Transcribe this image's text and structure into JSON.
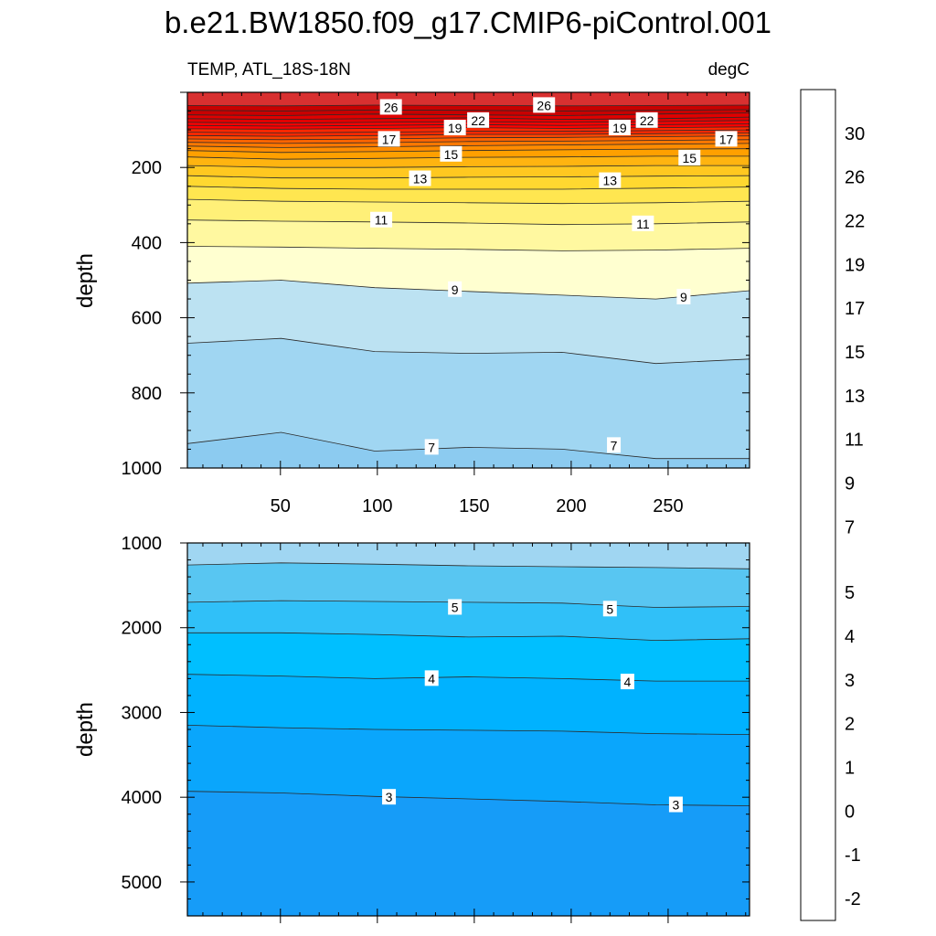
{
  "chart_data": {
    "type": "contour",
    "title": "b.e21.BW1850.f09_g17.CMIP6-piControl.001",
    "left_subtitle": "TEMP, ATL_18S-18N",
    "right_subtitle": "degC",
    "xlabel": "",
    "ylabel": "depth",
    "xlim": [
      2,
      292
    ],
    "x_ticks": [
      50,
      100,
      150,
      200,
      250
    ],
    "panels": [
      {
        "name": "upper",
        "ylim": [
          0,
          1000
        ],
        "y_ticks": [
          200,
          400,
          600,
          800,
          1000
        ],
        "isotherms": [
          {
            "t": 28,
            "z": [
              35,
              36,
              34,
              35,
              36,
              35,
              34
            ]
          },
          {
            "t": 27,
            "z": [
              48,
              50,
              47,
              48,
              50,
              48,
              46
            ]
          },
          {
            "t": 26,
            "z": [
              60,
              62,
              58,
              60,
              62,
              58,
              55
            ]
          },
          {
            "t": 25,
            "z": [
              70,
              72,
              70,
              68,
              72,
              70,
              66
            ]
          },
          {
            "t": 24,
            "z": [
              80,
              82,
              80,
              78,
              80,
              78,
              75
            ]
          },
          {
            "t": 23,
            "z": [
              88,
              90,
              88,
              86,
              88,
              86,
              84
            ]
          },
          {
            "t": 22,
            "z": [
              97,
              98,
              96,
              94,
              96,
              94,
              92
            ]
          },
          {
            "t": 21,
            "z": [
              106,
              108,
              106,
              104,
              104,
              102,
              100
            ]
          },
          {
            "t": 20,
            "z": [
              115,
              117,
              115,
              112,
              112,
              110,
              108
            ]
          },
          {
            "t": 19,
            "z": [
              124,
              126,
              124,
              121,
              120,
              118,
              116
            ]
          },
          {
            "t": 18,
            "z": [
              133,
              136,
              134,
              131,
              130,
              128,
              126
            ]
          },
          {
            "t": 17,
            "z": [
              143,
              147,
              145,
              142,
              140,
              138,
              136
            ]
          },
          {
            "t": 16,
            "z": [
              155,
              160,
              158,
              155,
              153,
              151,
              150
            ]
          },
          {
            "t": 15,
            "z": [
              172,
              178,
              176,
              173,
              172,
              170,
              170
            ]
          },
          {
            "t": 14,
            "z": [
              195,
              200,
              200,
              198,
              197,
              195,
              195
            ]
          },
          {
            "t": 13,
            "z": [
              222,
              228,
              228,
              226,
              225,
              223,
              222
            ]
          },
          {
            "t": 12,
            "z": [
              250,
              256,
              258,
              258,
              258,
              255,
              252
            ]
          },
          {
            "t": 11,
            "z": [
              285,
              290,
              292,
              294,
              296,
              294,
              290
            ]
          },
          {
            "t": 10,
            "z": [
              340,
              343,
              345,
              348,
              352,
              350,
              345
            ]
          },
          {
            "t": 9,
            "z": [
              410,
              412,
              415,
              418,
              422,
              420,
              415
            ]
          },
          {
            "t": 8,
            "z": [
              508,
              500,
              520,
              530,
              540,
              550,
              528
            ]
          },
          {
            "t": 7,
            "z": [
              668,
              655,
              690,
              695,
              692,
              722,
              710
            ]
          },
          {
            "t": 6,
            "z": [
              935,
              905,
              955,
              945,
              950,
              975,
              975
            ]
          }
        ],
        "contour_labels": [
          {
            "x": 107,
            "z": 40,
            "text": "26"
          },
          {
            "x": 186,
            "z": 35,
            "text": "26"
          },
          {
            "x": 152,
            "z": 75,
            "text": "22"
          },
          {
            "x": 239,
            "z": 75,
            "text": "22"
          },
          {
            "x": 140,
            "z": 95,
            "text": "19"
          },
          {
            "x": 225,
            "z": 95,
            "text": "19"
          },
          {
            "x": 106,
            "z": 125,
            "text": "17"
          },
          {
            "x": 280,
            "z": 125,
            "text": "17"
          },
          {
            "x": 138,
            "z": 165,
            "text": "15"
          },
          {
            "x": 261,
            "z": 175,
            "text": "15"
          },
          {
            "x": 122,
            "z": 230,
            "text": "13"
          },
          {
            "x": 220,
            "z": 235,
            "text": "13"
          },
          {
            "x": 102,
            "z": 340,
            "text": "11"
          },
          {
            "x": 237,
            "z": 350,
            "text": "11"
          },
          {
            "x": 140,
            "z": 525,
            "text": "9"
          },
          {
            "x": 258,
            "z": 545,
            "text": "9"
          },
          {
            "x": 128,
            "z": 945,
            "text": "7"
          },
          {
            "x": 222,
            "z": 940,
            "text": "7"
          }
        ]
      },
      {
        "name": "lower",
        "ylim": [
          1000,
          5400
        ],
        "y_ticks": [
          1000,
          2000,
          3000,
          4000,
          5000
        ],
        "isotherms": [
          {
            "t": 5.5,
            "z": [
              1260,
              1235,
              1250,
              1270,
              1280,
              1290,
              1305
            ]
          },
          {
            "t": 5,
            "z": [
              1700,
              1680,
              1690,
              1700,
              1710,
              1760,
              1750
            ]
          },
          {
            "t": 4.5,
            "z": [
              2060,
              2060,
              2080,
              2110,
              2100,
              2150,
              2130
            ]
          },
          {
            "t": 4,
            "z": [
              2550,
              2570,
              2600,
              2580,
              2600,
              2630,
              2630
            ]
          },
          {
            "t": 3.5,
            "z": [
              3150,
              3180,
              3200,
              3210,
              3220,
              3250,
              3260
            ]
          },
          {
            "t": 3,
            "z": [
              3930,
              3950,
              3990,
              4020,
              4050,
              4090,
              4100
            ]
          }
        ],
        "contour_labels": [
          {
            "x": 140,
            "z": 1760,
            "text": "5"
          },
          {
            "x": 220,
            "z": 1780,
            "text": "5"
          },
          {
            "x": 128,
            "z": 2600,
            "text": "4"
          },
          {
            "x": 229,
            "z": 2640,
            "text": "4"
          },
          {
            "x": 106,
            "z": 4000,
            "text": "3"
          },
          {
            "x": 254,
            "z": 4090,
            "text": "3"
          }
        ]
      }
    ],
    "colorbar": {
      "levels": [
        -2.5,
        -2,
        -1.5,
        -1,
        -0.5,
        0,
        0.5,
        1,
        1.5,
        2,
        2.5,
        3,
        3.5,
        4,
        4.5,
        5,
        5.5,
        6,
        7,
        8,
        9,
        10,
        11,
        12,
        13,
        14,
        15,
        16,
        17,
        18,
        19,
        20,
        22,
        24,
        26,
        28,
        30,
        32
      ],
      "colors": [
        "#8a2be2",
        "#6a1bf0",
        "#3a10f5",
        "#0000ff",
        "#1c2ce8",
        "#2848e6",
        "#3a5ee0",
        "#3270e0",
        "#2a80e8",
        "#1e90ff",
        "#169cf8",
        "#0aa6fc",
        "#00b2ff",
        "#00bfff",
        "#30c0f8",
        "#58c6f2",
        "#8ccbf0",
        "#a0d6f2",
        "#bce2f2",
        "#ffffd0",
        "#fff8a0",
        "#fff078",
        "#ffe650",
        "#ffd830",
        "#ffc820",
        "#ffb410",
        "#ffa000",
        "#ff8c00",
        "#ff7800",
        "#ff6400",
        "#ff4800",
        "#ff2800",
        "#ff0000",
        "#e00000",
        "#c80000",
        "#d83030",
        "#e87070",
        "#ffb4b4"
      ],
      "label_levels": [
        -2,
        -1,
        0,
        1,
        2,
        3,
        4,
        5,
        7,
        9,
        11,
        13,
        15,
        17,
        19,
        22,
        26,
        30
      ],
      "labels": [
        "-2",
        "-1",
        "0",
        "1",
        "2",
        "3",
        "4",
        "5",
        "7",
        "9",
        "11",
        "13",
        "15",
        "17",
        "19",
        "22",
        "26",
        "30"
      ]
    },
    "grid": false,
    "legend": "right"
  }
}
